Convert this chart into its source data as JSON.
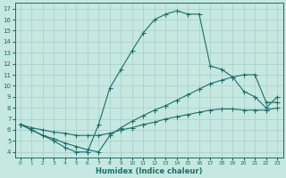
{
  "xlabel": "Humidex (Indice chaleur)",
  "xlim": [
    -0.5,
    23.5
  ],
  "ylim": [
    3.5,
    17.5
  ],
  "xticks": [
    0,
    1,
    2,
    3,
    4,
    5,
    6,
    7,
    8,
    9,
    10,
    11,
    12,
    13,
    14,
    15,
    16,
    17,
    18,
    19,
    20,
    21,
    22,
    23
  ],
  "yticks": [
    4,
    5,
    6,
    7,
    8,
    9,
    10,
    11,
    12,
    13,
    14,
    15,
    16,
    17
  ],
  "bg_color": "#c5e8e0",
  "grid_color": "#a8cfc8",
  "line_color": "#1a6e6a",
  "line1_x": [
    0,
    1,
    2,
    3,
    4,
    5,
    6,
    7,
    8,
    9,
    10,
    11,
    12,
    13,
    14,
    15,
    16,
    17,
    18,
    19,
    20,
    21,
    22,
    23
  ],
  "line1_y": [
    6.5,
    6.0,
    5.5,
    5.0,
    4.4,
    4.0,
    4.0,
    6.5,
    9.8,
    11.5,
    13.2,
    14.8,
    16.0,
    16.5,
    16.8,
    16.5,
    16.5,
    11.8,
    11.5,
    10.8,
    9.5,
    9.0,
    8.0,
    9.0
  ],
  "line2_x": [
    0,
    1,
    2,
    3,
    4,
    5,
    6,
    7,
    8,
    9,
    10,
    11,
    12,
    13,
    14,
    15,
    16,
    17,
    18,
    19,
    20,
    21,
    22,
    23
  ],
  "line2_y": [
    6.5,
    6.0,
    5.5,
    5.2,
    4.8,
    4.5,
    4.2,
    4.0,
    5.5,
    6.2,
    6.8,
    7.3,
    7.8,
    8.2,
    8.7,
    9.2,
    9.7,
    10.2,
    10.5,
    10.8,
    11.0,
    11.0,
    8.5,
    8.5
  ],
  "line3_x": [
    0,
    1,
    2,
    3,
    4,
    5,
    6,
    7,
    8,
    9,
    10,
    11,
    12,
    13,
    14,
    15,
    16,
    17,
    18,
    19,
    20,
    21,
    22,
    23
  ],
  "line3_y": [
    6.5,
    6.2,
    6.0,
    5.8,
    5.7,
    5.5,
    5.5,
    5.5,
    5.7,
    6.0,
    6.2,
    6.5,
    6.7,
    7.0,
    7.2,
    7.4,
    7.6,
    7.8,
    7.9,
    7.9,
    7.8,
    7.8,
    7.8,
    8.0
  ],
  "marker_size": 2.0,
  "line_width": 0.8,
  "xlabel_fontsize": 6.0,
  "tick_fontsize_x": 4.2,
  "tick_fontsize_y": 5.0
}
